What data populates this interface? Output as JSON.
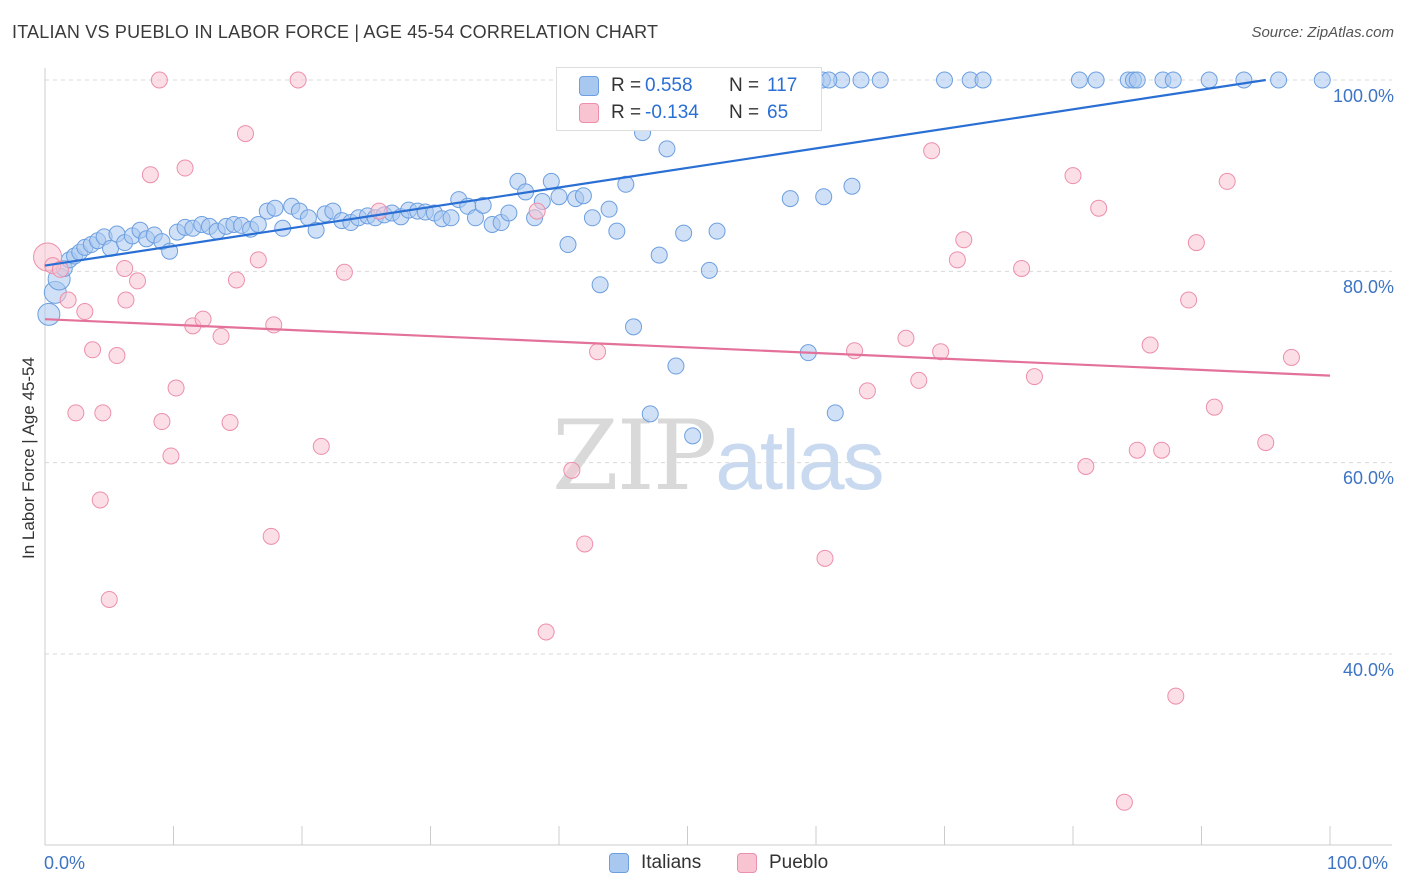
{
  "title": "ITALIAN VS PUEBLO IN LABOR FORCE | AGE 45-54 CORRELATION CHART",
  "source": "Source: ZipAtlas.com",
  "watermark": {
    "zip": "ZIP",
    "atlas": "atlas"
  },
  "legend": {
    "italians": {
      "r_label": "R =",
      "r_value": "0.558",
      "n_label": "N =",
      "n_value": "117"
    },
    "pueblo": {
      "r_label": "R =",
      "r_value": "-0.134",
      "n_label": "N =",
      "n_value": "65"
    }
  },
  "colors": {
    "italians_fill": "#a9c8f0",
    "italians_stroke": "#6d9fe0",
    "italians_line": "#2a6fd4",
    "pueblo_fill": "#f9c4d2",
    "pueblo_stroke": "#ec8fab",
    "pueblo_line": "#e3719a",
    "tick_text": "#3d74c4",
    "grid": "#d9d9d9"
  },
  "chart_data": {
    "type": "scatter",
    "title": "ITALIAN VS PUEBLO IN LABOR FORCE | AGE 45-54 CORRELATION CHART",
    "xlabel": "",
    "ylabel": "In Labor Force | Age 45-54",
    "xlim": [
      0,
      100
    ],
    "ylim": [
      20,
      101
    ],
    "x_tick_labels": [
      "0.0%",
      "100.0%"
    ],
    "y_ticks": [
      40,
      60,
      80,
      100
    ],
    "y_tick_labels": [
      "40.0%",
      "60.0%",
      "80.0%",
      "100.0%"
    ],
    "grid": "horizontal dashed",
    "legend_position": "bottom-center",
    "series": [
      {
        "name": "Italians",
        "trend": {
          "x": [
            0,
            95
          ],
          "y": [
            80.6,
            100
          ]
        },
        "points": [
          [
            0.3,
            75.5
          ],
          [
            0.8,
            77.8
          ],
          [
            1.1,
            79.2
          ],
          [
            1.5,
            80.3
          ],
          [
            1.9,
            81.2
          ],
          [
            2.3,
            81.6
          ],
          [
            2.7,
            82.0
          ],
          [
            3.1,
            82.5
          ],
          [
            3.6,
            82.8
          ],
          [
            4.1,
            83.2
          ],
          [
            4.6,
            83.6
          ],
          [
            5.1,
            82.4
          ],
          [
            5.6,
            83.9
          ],
          [
            6.2,
            83.0
          ],
          [
            6.8,
            83.7
          ],
          [
            7.4,
            84.3
          ],
          [
            7.9,
            83.4
          ],
          [
            8.5,
            83.8
          ],
          [
            9.1,
            83.1
          ],
          [
            9.7,
            82.1
          ],
          [
            10.3,
            84.1
          ],
          [
            10.9,
            84.6
          ],
          [
            11.5,
            84.5
          ],
          [
            12.2,
            84.9
          ],
          [
            12.8,
            84.7
          ],
          [
            13.4,
            84.2
          ],
          [
            14.1,
            84.7
          ],
          [
            14.7,
            84.9
          ],
          [
            15.3,
            84.8
          ],
          [
            16.0,
            84.4
          ],
          [
            16.6,
            84.9
          ],
          [
            17.3,
            86.3
          ],
          [
            17.9,
            86.6
          ],
          [
            18.5,
            84.5
          ],
          [
            19.2,
            86.8
          ],
          [
            19.8,
            86.3
          ],
          [
            20.5,
            85.6
          ],
          [
            21.1,
            84.3
          ],
          [
            21.8,
            86.0
          ],
          [
            22.4,
            86.3
          ],
          [
            23.1,
            85.3
          ],
          [
            23.8,
            85.1
          ],
          [
            24.4,
            85.6
          ],
          [
            25.1,
            85.8
          ],
          [
            25.7,
            85.6
          ],
          [
            26.4,
            85.9
          ],
          [
            27.0,
            86.1
          ],
          [
            27.7,
            85.7
          ],
          [
            28.3,
            86.4
          ],
          [
            29.0,
            86.3
          ],
          [
            29.6,
            86.2
          ],
          [
            30.3,
            86.1
          ],
          [
            30.9,
            85.5
          ],
          [
            31.6,
            85.6
          ],
          [
            32.2,
            87.5
          ],
          [
            32.9,
            86.8
          ],
          [
            33.5,
            85.6
          ],
          [
            34.1,
            86.9
          ],
          [
            34.8,
            84.9
          ],
          [
            35.5,
            85.1
          ],
          [
            36.1,
            86.1
          ],
          [
            36.8,
            89.4
          ],
          [
            37.4,
            88.3
          ],
          [
            38.1,
            85.6
          ],
          [
            38.7,
            87.3
          ],
          [
            39.4,
            89.4
          ],
          [
            40.0,
            87.8
          ],
          [
            40.7,
            82.8
          ],
          [
            41.3,
            87.6
          ],
          [
            41.9,
            87.9
          ],
          [
            42.6,
            85.6
          ],
          [
            43.2,
            78.6
          ],
          [
            43.9,
            86.5
          ],
          [
            44.5,
            84.2
          ],
          [
            45.2,
            89.1
          ],
          [
            45.8,
            74.2
          ],
          [
            46.5,
            94.5
          ],
          [
            47.1,
            65.1
          ],
          [
            47.8,
            81.7
          ],
          [
            48.4,
            92.8
          ],
          [
            49.1,
            70.1
          ],
          [
            49.7,
            84.0
          ],
          [
            50.4,
            62.8
          ],
          [
            51.0,
            100.0
          ],
          [
            51.7,
            80.1
          ],
          [
            52.3,
            84.2
          ],
          [
            55.0,
            100.0
          ],
          [
            56.0,
            96.0
          ],
          [
            58.0,
            87.6
          ],
          [
            59.0,
            100.0
          ],
          [
            59.4,
            71.5
          ],
          [
            60.0,
            100.0
          ],
          [
            60.6,
            87.8
          ],
          [
            61.5,
            65.2
          ],
          [
            62.0,
            100.0
          ],
          [
            62.8,
            88.9
          ],
          [
            65.0,
            100.0
          ],
          [
            70.0,
            100.0
          ],
          [
            72.0,
            100.0
          ],
          [
            73.0,
            100.0
          ],
          [
            80.5,
            100.0
          ],
          [
            81.8,
            100.0
          ],
          [
            84.3,
            100.0
          ],
          [
            84.7,
            100.0
          ],
          [
            87.0,
            100.0
          ],
          [
            87.8,
            100.0
          ],
          [
            90.6,
            100.0
          ],
          [
            93.3,
            100.0
          ],
          [
            96.0,
            100.0
          ],
          [
            99.4,
            100.0
          ],
          [
            45.0,
            100.0
          ],
          [
            57.0,
            100.0
          ],
          [
            63.5,
            100.0
          ],
          [
            85.0,
            100.0
          ],
          [
            60.5,
            100.0
          ],
          [
            61.0,
            100.0
          ],
          [
            59.5,
            100.0
          ]
        ]
      },
      {
        "name": "Pueblo",
        "trend": {
          "x": [
            0,
            100
          ],
          "y": [
            75.0,
            69.1
          ]
        },
        "points": [
          [
            0.2,
            81.5
          ],
          [
            0.6,
            80.6
          ],
          [
            1.2,
            80.2
          ],
          [
            1.8,
            77.0
          ],
          [
            2.4,
            65.2
          ],
          [
            3.1,
            75.8
          ],
          [
            3.7,
            71.8
          ],
          [
            4.3,
            56.1
          ],
          [
            4.5,
            65.2
          ],
          [
            5.0,
            45.7
          ],
          [
            5.6,
            71.2
          ],
          [
            6.2,
            80.3
          ],
          [
            6.3,
            77.0
          ],
          [
            7.2,
            79.0
          ],
          [
            8.2,
            90.1
          ],
          [
            8.9,
            100.0
          ],
          [
            9.1,
            64.3
          ],
          [
            9.8,
            60.7
          ],
          [
            10.2,
            67.8
          ],
          [
            10.9,
            90.8
          ],
          [
            11.5,
            74.3
          ],
          [
            12.3,
            75.0
          ],
          [
            13.7,
            73.2
          ],
          [
            14.4,
            64.2
          ],
          [
            14.9,
            79.1
          ],
          [
            15.6,
            94.4
          ],
          [
            16.6,
            81.2
          ],
          [
            17.6,
            52.3
          ],
          [
            17.8,
            74.4
          ],
          [
            19.7,
            100.0
          ],
          [
            21.5,
            61.7
          ],
          [
            23.3,
            79.9
          ],
          [
            26.0,
            86.3
          ],
          [
            38.3,
            86.3
          ],
          [
            39.0,
            42.3
          ],
          [
            41.0,
            59.2
          ],
          [
            42.0,
            51.5
          ],
          [
            43.0,
            71.6
          ],
          [
            45.0,
            100.0
          ],
          [
            59.6,
            100.0
          ],
          [
            60.7,
            50.0
          ],
          [
            63.0,
            71.7
          ],
          [
            64.0,
            67.5
          ],
          [
            67.0,
            73.0
          ],
          [
            68.0,
            68.6
          ],
          [
            69.0,
            92.6
          ],
          [
            69.7,
            71.6
          ],
          [
            71.0,
            81.2
          ],
          [
            71.5,
            83.3
          ],
          [
            76.0,
            80.3
          ],
          [
            77.0,
            69.0
          ],
          [
            80.0,
            90.0
          ],
          [
            81.0,
            59.6
          ],
          [
            82.0,
            86.6
          ],
          [
            84.0,
            24.5
          ],
          [
            85.0,
            61.3
          ],
          [
            86.0,
            72.3
          ],
          [
            86.9,
            61.3
          ],
          [
            88.0,
            35.6
          ],
          [
            89.0,
            77.0
          ],
          [
            89.6,
            83.0
          ],
          [
            91.0,
            65.8
          ],
          [
            92.0,
            89.4
          ],
          [
            95.0,
            62.1
          ],
          [
            97.0,
            71.0
          ]
        ]
      }
    ]
  }
}
